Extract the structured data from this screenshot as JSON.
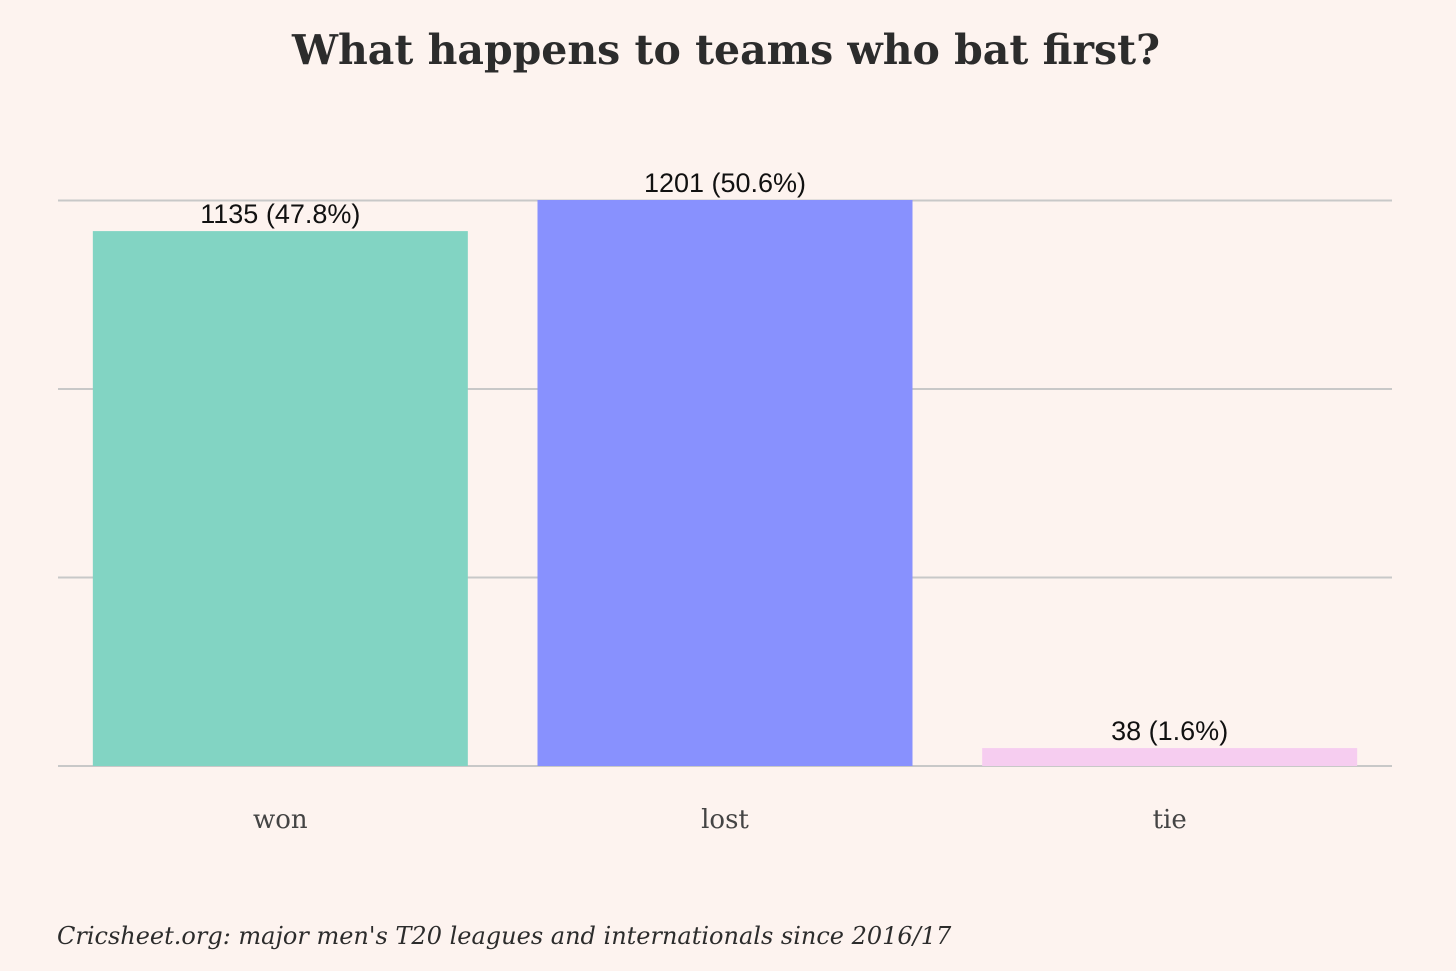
{
  "chart_data": {
    "type": "bar",
    "title": "What happens to teams who bat first?",
    "categories": [
      "won",
      "lost",
      "tie"
    ],
    "values": [
      1135,
      1201,
      38
    ],
    "data_labels": [
      "1135 (47.8%)",
      "1201 (50.6%)",
      "38 (1.6%)"
    ],
    "colors": [
      "#82d4c3",
      "#8891fe",
      "#f6cdf0"
    ],
    "xlabel": "",
    "ylabel": "",
    "ylim": [
      0,
      1201
    ],
    "gridlines": [
      0,
      400,
      800,
      1200
    ],
    "grid": true,
    "caption": "Cricsheet.org: major men's T20 leagues and internationals since 2016/17"
  }
}
